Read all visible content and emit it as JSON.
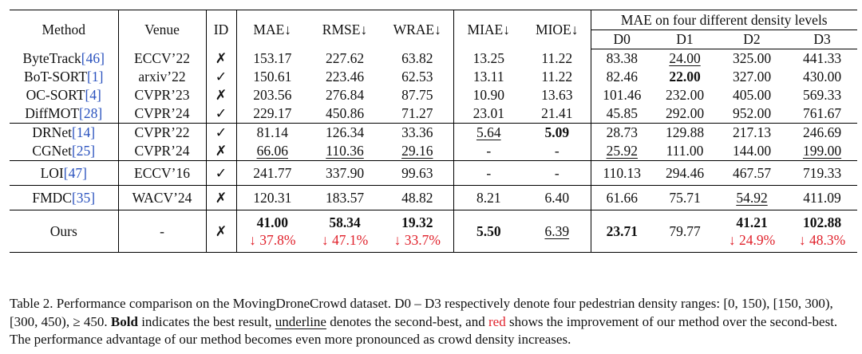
{
  "header": {
    "method": "Method",
    "venue": "Venue",
    "id": "ID",
    "mae": "MAE↓",
    "rmse": "RMSE↓",
    "wrae": "WRAE↓",
    "miae": "MIAE↓",
    "mioe": "MIOE↓",
    "density_group": "MAE on four different density levels",
    "d0": "D0",
    "d1": "D1",
    "d2": "D2",
    "d3": "D3"
  },
  "rows": {
    "bytetrack": {
      "name": "ByteTrack",
      "cite": "[46]",
      "venue": "ECCV’22",
      "id": "✗",
      "mae": "153.17",
      "rmse": "227.62",
      "wrae": "63.82",
      "miae": "13.25",
      "mioe": "11.22",
      "d0": "83.38",
      "d1": "24.00",
      "d2": "325.00",
      "d3": "441.33"
    },
    "botsort": {
      "name": "BoT-SORT",
      "cite": "[1]",
      "venue": "arxiv’22",
      "id": "✓",
      "mae": "150.61",
      "rmse": "223.46",
      "wrae": "62.53",
      "miae": "13.11",
      "mioe": "11.22",
      "d0": "82.46",
      "d1": "22.00",
      "d2": "327.00",
      "d3": "430.00"
    },
    "ocsort": {
      "name": "OC-SORT",
      "cite": "[4]",
      "venue": "CVPR’23",
      "id": "✗",
      "mae": "203.56",
      "rmse": "276.84",
      "wrae": "87.75",
      "miae": "10.90",
      "mioe": "13.63",
      "d0": "101.46",
      "d1": "232.00",
      "d2": "405.00",
      "d3": "569.33"
    },
    "diffmot": {
      "name": "DiffMOT",
      "cite": "[28]",
      "venue": "CVPR’24",
      "id": "✓",
      "mae": "229.17",
      "rmse": "450.86",
      "wrae": "71.27",
      "miae": "23.01",
      "mioe": "21.41",
      "d0": "45.85",
      "d1": "292.00",
      "d2": "952.00",
      "d3": "761.67"
    },
    "drnet": {
      "name": "DRNet",
      "cite": "[14]",
      "venue": "CVPR’22",
      "id": "✓",
      "mae": "81.14",
      "rmse": "126.34",
      "wrae": "33.36",
      "miae": "5.64",
      "mioe": "5.09",
      "d0": "28.73",
      "d1": "129.88",
      "d2": "217.13",
      "d3": "246.69"
    },
    "cgnet": {
      "name": "CGNet",
      "cite": "[25]",
      "venue": "CVPR’24",
      "id": "✗",
      "mae": "66.06",
      "rmse": "110.36",
      "wrae": "29.16",
      "miae": "-",
      "mioe": "-",
      "d0": "25.92",
      "d1": "111.00",
      "d2": "144.00",
      "d3": "199.00"
    },
    "loi": {
      "name": "LOI",
      "cite": "[47]",
      "venue": "ECCV’16",
      "id": "✓",
      "mae": "241.77",
      "rmse": "337.90",
      "wrae": "99.63",
      "miae": "-",
      "mioe": "-",
      "d0": "110.13",
      "d1": "294.46",
      "d2": "467.57",
      "d3": "719.33"
    },
    "fmdc": {
      "name": "FMDC",
      "cite": "[35]",
      "venue": "WACV’24",
      "id": "✗",
      "mae": "120.31",
      "rmse": "183.57",
      "wrae": "48.82",
      "miae": "8.21",
      "mioe": "6.40",
      "d0": "61.66",
      "d1": "75.71",
      "d2": "54.92",
      "d3": "411.09"
    },
    "ours": {
      "name": "Ours",
      "venue": "-",
      "id": "✗",
      "mae": "41.00",
      "mae_imp": "↓ 37.8%",
      "rmse": "58.34",
      "rmse_imp": "↓ 47.1%",
      "wrae": "19.32",
      "wrae_imp": "↓ 33.7%",
      "miae": "5.50",
      "mioe": "6.39",
      "d0": "23.71",
      "d1": "79.77",
      "d2": "41.21",
      "d2_imp": "↓ 24.9%",
      "d3": "102.88",
      "d3_imp": "↓ 48.3%"
    }
  },
  "caption": {
    "p1": "Table 2. Performance comparison on the MovingDroneCrowd dataset. D0 – D3 respectively denote four pedestrian density ranges: [0, 150), [150, 300), [300, 450), ≥ 450. ",
    "bold_word": "Bold",
    "p2": " indicates the best result, ",
    "underline_word": "underline",
    "p3": " denotes the second-best, and ",
    "red_word": "red",
    "p4": " shows the improvement of our method over the second-best. The performance advantage of our method becomes even more pronounced as crowd density increases."
  }
}
